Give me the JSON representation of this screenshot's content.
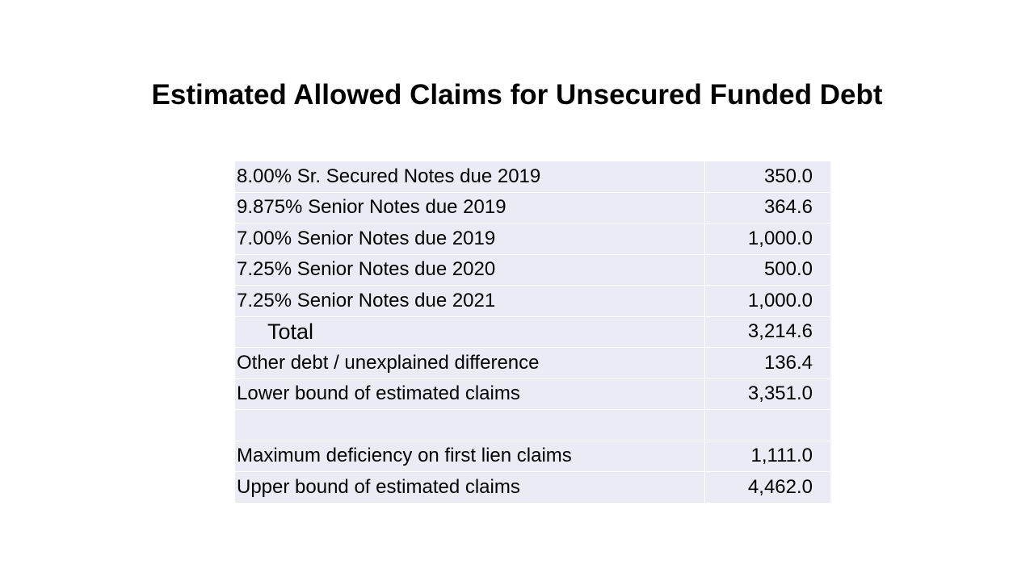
{
  "title": "Estimated Allowed Claims for Unsecured Funded Debt",
  "table": {
    "sections": [
      {
        "rows": [
          {
            "label": "8.00% Sr. Secured Notes due 2019",
            "value": "350.0"
          },
          {
            "label": "9.875% Senior Notes due 2019",
            "value": "364.6"
          },
          {
            "label": "7.00% Senior Notes due 2019",
            "value": "1,000.0"
          },
          {
            "label": "7.25% Senior Notes due 2020",
            "value": "500.0"
          },
          {
            "label": "7.25% Senior Notes due 2021",
            "value": "1,000.0"
          },
          {
            "label": "Total",
            "value": "3,214.6",
            "rule_above": true,
            "indent": true
          },
          {
            "label": "Other debt / unexplained difference",
            "value": "136.4"
          },
          {
            "label": "Lower bound of estimated claims",
            "value": "3,351.0",
            "rule_above": true
          }
        ]
      },
      {
        "rows": [
          {
            "label": "Maximum deficiency on first lien claims",
            "value": "1,111.0"
          },
          {
            "label": "Upper bound of estimated claims",
            "value": "4,462.0",
            "rule_above": true
          }
        ]
      }
    ]
  }
}
